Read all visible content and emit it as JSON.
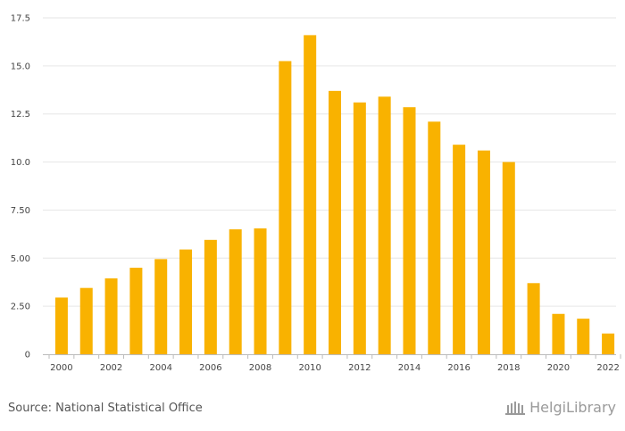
{
  "chart_data": {
    "type": "bar",
    "categories": [
      "2000",
      "2001",
      "2002",
      "2003",
      "2004",
      "2005",
      "2006",
      "2007",
      "2008",
      "2009",
      "2010",
      "2011",
      "2012",
      "2013",
      "2014",
      "2015",
      "2016",
      "2017",
      "2018",
      "2019",
      "2020",
      "2021",
      "2022"
    ],
    "values": [
      2.95,
      3.45,
      3.95,
      4.5,
      4.95,
      5.45,
      5.95,
      6.5,
      6.55,
      15.25,
      16.6,
      13.7,
      13.1,
      13.4,
      12.85,
      12.1,
      10.9,
      10.6,
      10.0,
      3.7,
      2.1,
      1.85,
      1.08
    ],
    "x_tick_labels": [
      "2000",
      "2002",
      "2004",
      "2006",
      "2008",
      "2010",
      "2012",
      "2014",
      "2016",
      "2018",
      "2020",
      "2022"
    ],
    "y_ticks": [
      0,
      2.5,
      5,
      7.5,
      10,
      12.5,
      15,
      17.5
    ],
    "y_tick_labels": [
      "0",
      "2.50",
      "5.00",
      "7.50",
      "10.0",
      "12.5",
      "15.0",
      "17.5"
    ],
    "ylim": [
      0,
      17.5
    ],
    "title": "",
    "xlabel": "",
    "ylabel": "",
    "grid": true,
    "bar_color": "#F9B200"
  },
  "footer": {
    "source": "Source: National Statistical Office",
    "brand": "HelgiLibrary"
  }
}
